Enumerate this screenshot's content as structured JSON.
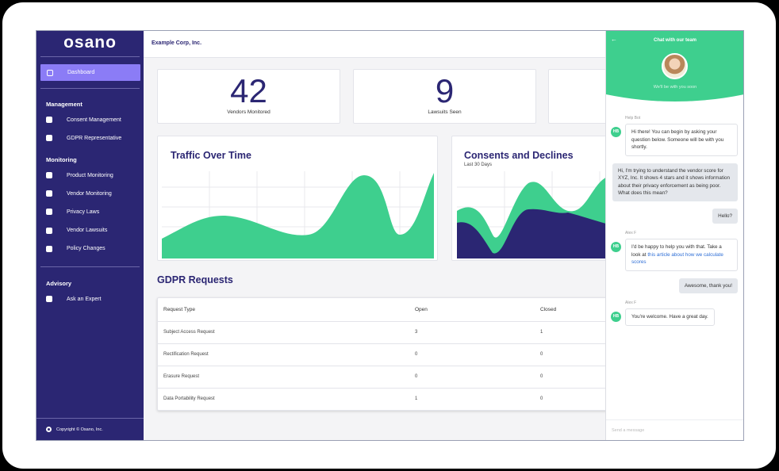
{
  "sidebar": {
    "logo": "osano",
    "active_item": "Dashboard",
    "sections": [
      {
        "title": "Management",
        "items": [
          "Consent Management",
          "GDPR Representative"
        ]
      },
      {
        "title": "Monitoring",
        "items": [
          "Product Monitoring",
          "Vendor Monitoring",
          "Privacy Laws",
          "Vendor Lawsuits",
          "Policy Changes"
        ]
      },
      {
        "title": "Advisory",
        "items": [
          "Ask an Expert"
        ]
      }
    ],
    "footer": "Copyright © Osano, Inc."
  },
  "header": {
    "company": "Example Corp, Inc."
  },
  "stats": [
    {
      "value": "42",
      "label": "Vendors Monitored"
    },
    {
      "value": "9",
      "label": "Lawsuits Seen"
    }
  ],
  "charts": [
    {
      "title": "Traffic Over Time"
    },
    {
      "title": "Consents and Declines",
      "subtitle": "Last 30 Days"
    }
  ],
  "gdpr": {
    "title": "GDPR Requests",
    "columns": [
      "Request Type",
      "Open",
      "Closed"
    ],
    "rows": [
      [
        "Subject Access Request",
        "3",
        "1"
      ],
      [
        "Rectification Request",
        "0",
        "0"
      ],
      [
        "Erasure Request",
        "0",
        "0"
      ],
      [
        "Data Portability Request",
        "1",
        "0"
      ]
    ]
  },
  "chat": {
    "title": "Chat with our team",
    "status": "We'll be with you soon",
    "messages": [
      {
        "sender": "Help Bot",
        "avatar": "HB",
        "text": "Hi there! You can begin by asking your question below. Someone will be with you shortly."
      },
      {
        "text": "Hi, I'm trying to understand the vendor score for XYZ, Inc. It shows 4 stars and it shows information about their privacy enforcement as being poor. What does this mean?"
      },
      {
        "text": "Hello?"
      },
      {
        "sender": "Alex F",
        "avatar": "HB",
        "text": "I'd be happy to help you with that. Take a look at ",
        "link": "this article about how we calculate scores"
      },
      {
        "text": "Awesome, thank you!"
      },
      {
        "sender": "Alex F",
        "avatar": "HB",
        "text": "You're welcome. Have a great day."
      }
    ],
    "placeholder": "Send a message"
  }
}
